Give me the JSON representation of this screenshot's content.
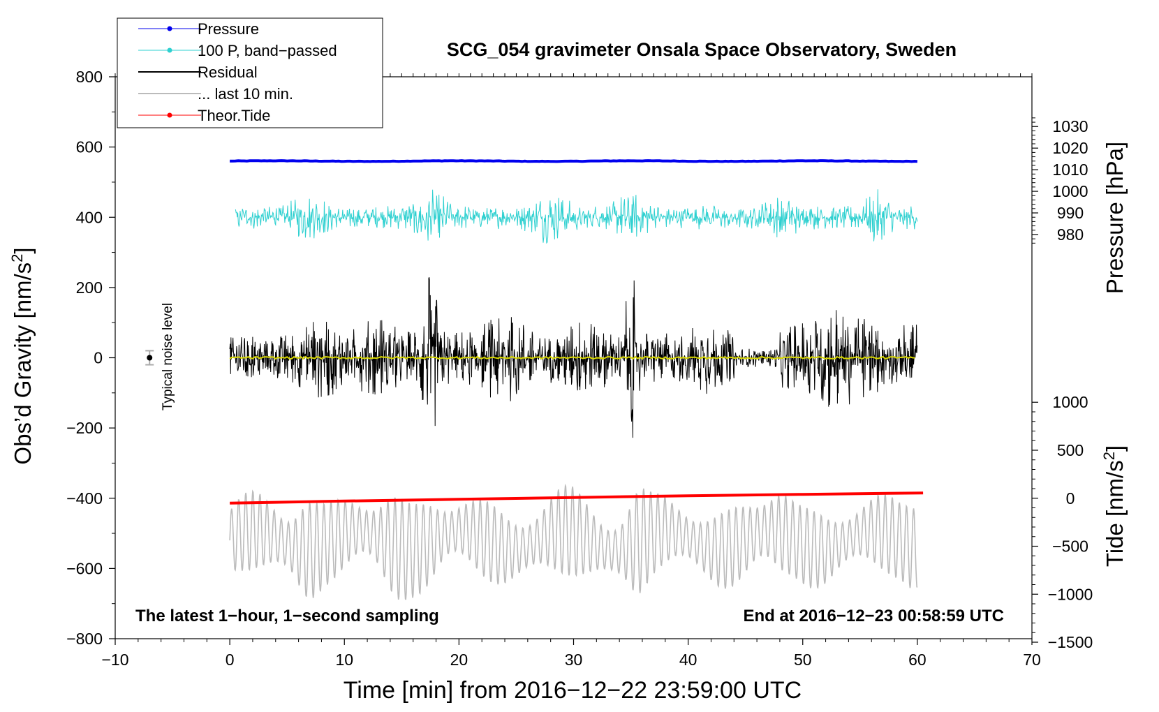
{
  "chart_data": {
    "type": "line",
    "title": "SCG_054 gravimeter Onsala Space Observatory, Sweden",
    "xlabel": "Time [min] from 2016−12−22 23:59:00 UTC",
    "ylabel_left": "Obs’d Gravity [nm/s²]",
    "ylabel_right_pressure": "Pressure [hPa]",
    "ylabel_right_tide": "Tide [nm/s²]",
    "xlim": [
      -10,
      70
    ],
    "ylim": [
      -800,
      800
    ],
    "x_ticks": [
      -10,
      0,
      10,
      20,
      30,
      40,
      50,
      60,
      70
    ],
    "x_tick_labels": [
      "−10",
      "0",
      "10",
      "20",
      "30",
      "40",
      "50",
      "60",
      "70"
    ],
    "y_ticks": [
      -800,
      -600,
      -400,
      -200,
      0,
      200,
      400,
      600,
      800
    ],
    "y_tick_labels": [
      "−800",
      "−600",
      "−400",
      "−200",
      "0",
      "200",
      "400",
      "600",
      "800"
    ],
    "pressure_axis": {
      "ticks": [
        980,
        990,
        1000,
        1010,
        1020,
        1030
      ],
      "tick_labels": [
        "980",
        "990",
        "1000",
        "1010",
        "1020",
        "1030"
      ]
    },
    "tide_axis": {
      "ticks": [
        -1500,
        -1000,
        -500,
        0,
        500,
        1000
      ],
      "tick_labels": [
        "−1500",
        "−1000",
        "−500",
        "0",
        "500",
        "1000"
      ]
    },
    "legend": {
      "position": "top-left",
      "entries": [
        {
          "name": "Pressure",
          "color": "#0000ee",
          "marker": true
        },
        {
          "name": "100 P, band−passed",
          "color": "#2ed0d0",
          "marker": true
        },
        {
          "name": "Residual",
          "color": "#000000",
          "marker": false
        },
        {
          "name": "... last 10 min.",
          "color": "#bbbbbb",
          "marker": false
        },
        {
          "name": "Theor.Tide",
          "color": "#ff0000",
          "marker": true
        }
      ]
    },
    "series": [
      {
        "name": "Pressure",
        "color": "#0000ee",
        "x_range": [
          0,
          60
        ],
        "level": 560
      },
      {
        "name": "100 P, band-passed",
        "color": "#2ed0d0",
        "x_range": [
          0.5,
          60
        ],
        "level": 400,
        "amplitude": 70
      },
      {
        "name": "Residual",
        "color": "#000000",
        "x_range": [
          0,
          60
        ],
        "level": 0,
        "amplitude": 140
      },
      {
        "name": "residual mean",
        "color": "#d8d800",
        "x_range": [
          0,
          60
        ],
        "level": 0
      },
      {
        "name": "... last 10 min.",
        "color": "#bbbbbb",
        "x_range": [
          0,
          60
        ],
        "level": -520,
        "amplitude": 150
      },
      {
        "name": "Theor.Tide",
        "color": "#ff0000",
        "x": [
          0,
          10,
          20,
          30,
          40,
          50,
          60.5
        ],
        "y": [
          -414,
          -408,
          -403,
          -398,
          -393,
          -389,
          -385
        ]
      }
    ],
    "noise_marker": {
      "x": -7,
      "y": 0,
      "error": 20,
      "label": "Typical noise level"
    },
    "annotations": {
      "left": "The latest 1−hour, 1−second sampling",
      "right": "End at 2016−12−23 00:58:59 UTC"
    }
  }
}
